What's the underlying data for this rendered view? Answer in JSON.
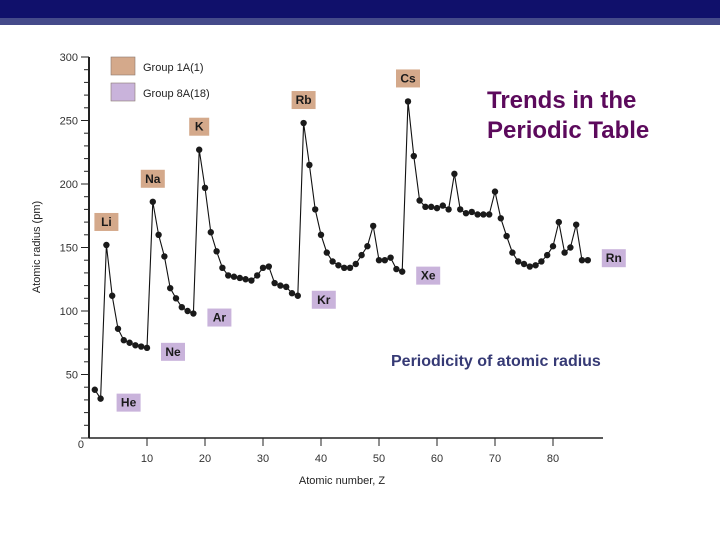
{
  "slide": {
    "title": "Trends in the\nPeriodic Table",
    "subtitle": "Periodicity of atomic radius",
    "colors": {
      "header": "#10106b",
      "header_stripe": "#454a8a",
      "title": "#5c0a5c",
      "subtitle": "#363a75",
      "group1": "#d4a98b",
      "group18": "#c9b3db"
    }
  },
  "chart_data": {
    "type": "line",
    "title": "",
    "xlabel": "Atomic number, Z",
    "ylabel": "Atomic radius (pm)",
    "xlim": [
      0,
      88
    ],
    "ylim": [
      0,
      300
    ],
    "x_ticks": [
      10,
      20,
      30,
      40,
      50,
      60,
      70,
      80
    ],
    "y_ticks": [
      0,
      50,
      100,
      150,
      200,
      250,
      300
    ],
    "legend": [
      {
        "label": "Group 1A(1)",
        "color": "#d4a98b"
      },
      {
        "label": "Group 8A(18)",
        "color": "#c9b3db"
      }
    ],
    "legend_position": "top-left",
    "grid": false,
    "x": [
      1,
      2,
      3,
      4,
      5,
      6,
      7,
      8,
      9,
      10,
      11,
      12,
      13,
      14,
      15,
      16,
      17,
      18,
      19,
      20,
      21,
      22,
      23,
      24,
      25,
      26,
      27,
      28,
      29,
      30,
      31,
      32,
      33,
      34,
      35,
      36,
      37,
      38,
      39,
      40,
      41,
      42,
      43,
      44,
      45,
      46,
      47,
      48,
      49,
      50,
      51,
      52,
      53,
      54,
      55,
      56,
      57,
      58,
      59,
      60,
      61,
      62,
      63,
      64,
      65,
      66,
      67,
      68,
      69,
      70,
      71,
      72,
      73,
      74,
      75,
      76,
      77,
      78,
      79,
      80,
      81,
      82,
      83,
      84,
      85,
      86
    ],
    "series": [
      {
        "name": "Atomic radius",
        "values": [
          38,
          31,
          152,
          112,
          86,
          77,
          75,
          73,
          72,
          71,
          186,
          160,
          143,
          118,
          110,
          103,
          100,
          98,
          227,
          197,
          162,
          147,
          134,
          128,
          127,
          126,
          125,
          124,
          128,
          134,
          135,
          122,
          120,
          119,
          114,
          112,
          248,
          215,
          180,
          160,
          146,
          139,
          136,
          134,
          134,
          137,
          144,
          151,
          167,
          140,
          140,
          142,
          133,
          131,
          265,
          222,
          187,
          182,
          182,
          181,
          183,
          180,
          208,
          180,
          177,
          178,
          176,
          176,
          176,
          194,
          173,
          159,
          146,
          139,
          137,
          135,
          136,
          139,
          144,
          151,
          170,
          146,
          150,
          168,
          140,
          140
        ]
      }
    ],
    "annotations": [
      {
        "label": "Li",
        "z": 3,
        "group": "1A"
      },
      {
        "label": "Na",
        "z": 11,
        "group": "1A"
      },
      {
        "label": "K",
        "z": 19,
        "group": "1A"
      },
      {
        "label": "Rb",
        "z": 37,
        "group": "1A"
      },
      {
        "label": "Cs",
        "z": 55,
        "group": "1A"
      },
      {
        "label": "He",
        "z": 2,
        "group": "8A"
      },
      {
        "label": "Ne",
        "z": 10,
        "group": "8A"
      },
      {
        "label": "Ar",
        "z": 18,
        "group": "8A"
      },
      {
        "label": "Kr",
        "z": 36,
        "group": "8A"
      },
      {
        "label": "Xe",
        "z": 54,
        "group": "8A"
      },
      {
        "label": "Rn",
        "z": 86,
        "group": "8A"
      }
    ]
  }
}
